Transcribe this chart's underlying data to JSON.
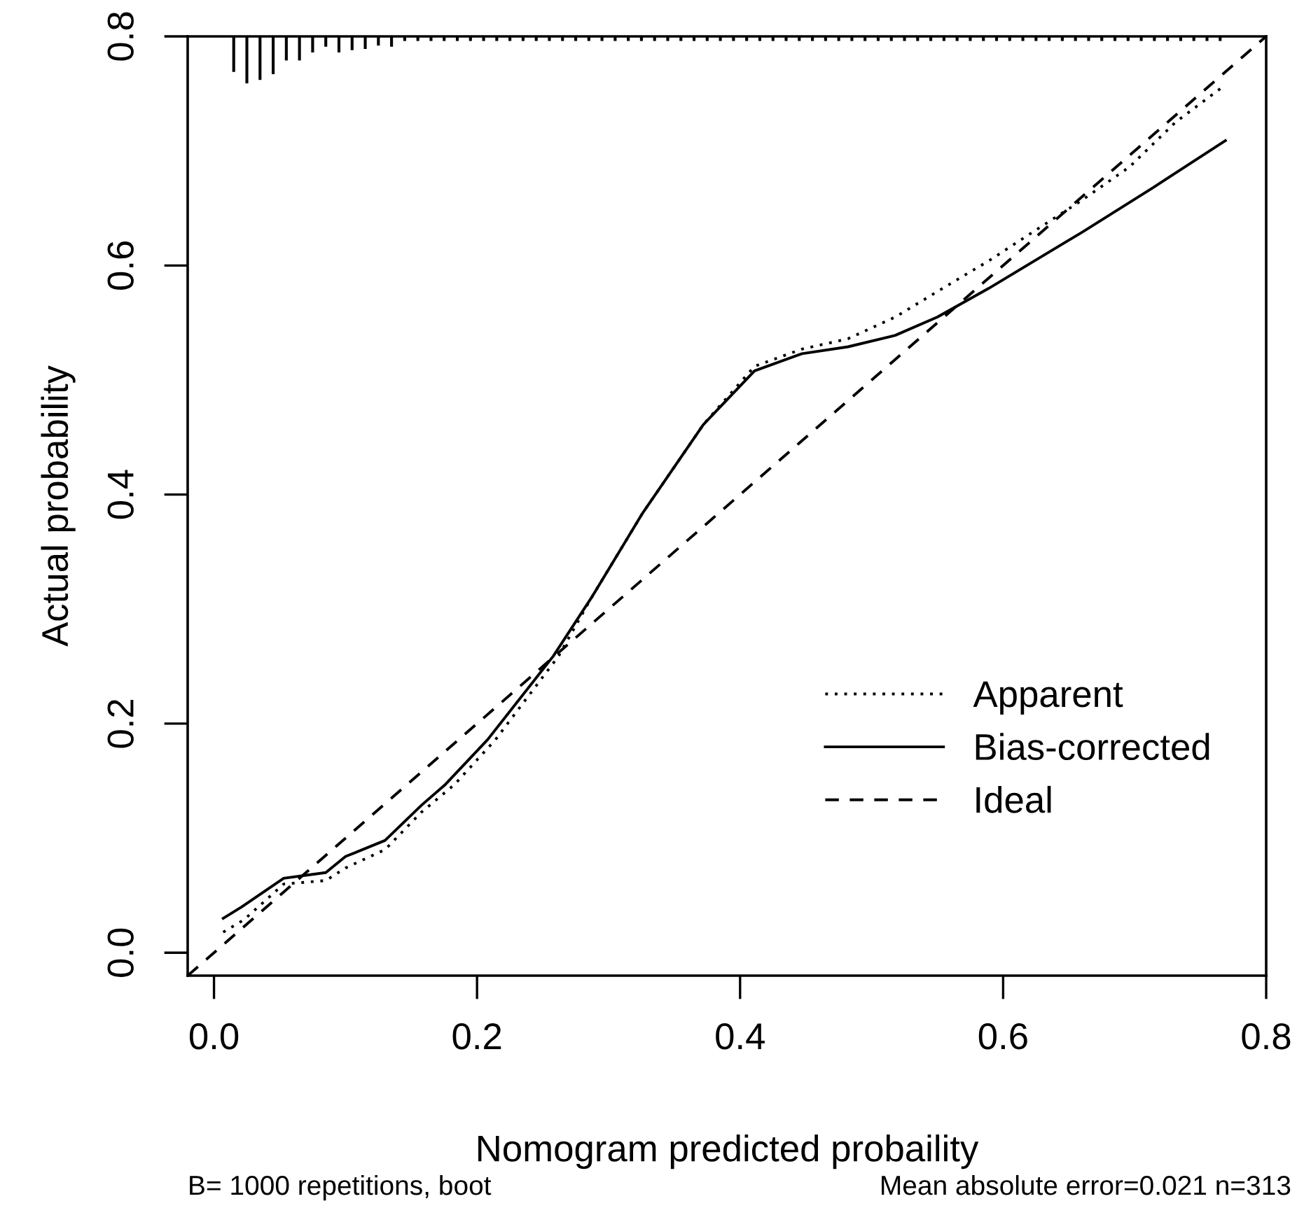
{
  "chart_data": {
    "type": "line",
    "xlabel": "Nomogram predicted probaility",
    "ylabel": "Actual probability",
    "xlim": [
      -0.02,
      0.8
    ],
    "ylim": [
      -0.02,
      0.8
    ],
    "xticks": [
      {
        "value": 0,
        "label": "0.0"
      },
      0.2,
      0.4,
      0.6,
      0.8
    ],
    "yticks": [
      {
        "value": 0,
        "label": "0.0"
      },
      0.2,
      0.4,
      0.6,
      0.8
    ],
    "grid": false,
    "legend": "right",
    "marker": "none",
    "annotations": [
      "B= 1000 repetitions, boot",
      "Mean absolute error=0.021 n=313"
    ],
    "series": [
      {
        "name": "Apparent",
        "color": "#000000",
        "line_style": "dotted",
        "x": [
          0.007,
          0.023,
          0.053,
          0.085,
          0.1,
          0.13,
          0.158,
          0.183,
          0.214,
          0.262,
          0.287,
          0.326,
          0.372,
          0.411,
          0.447,
          0.482,
          0.518,
          0.554,
          0.589,
          0.625,
          0.66,
          0.696,
          0.731,
          0.767
        ],
        "values": [
          0.018,
          0.029,
          0.06,
          0.063,
          0.074,
          0.09,
          0.123,
          0.147,
          0.186,
          0.259,
          0.31,
          0.384,
          0.461,
          0.512,
          0.527,
          0.536,
          0.555,
          0.58,
          0.604,
          0.631,
          0.657,
          0.686,
          0.725,
          0.756
        ]
      },
      {
        "name": "Bias-corrected",
        "color": "#000000",
        "line_style": "solid",
        "x": [
          0.007,
          0.021,
          0.053,
          0.085,
          0.1,
          0.13,
          0.158,
          0.176,
          0.208,
          0.258,
          0.287,
          0.326,
          0.372,
          0.411,
          0.447,
          0.482,
          0.518,
          0.55,
          0.589,
          0.66,
          0.714,
          0.769
        ],
        "values": [
          0.03,
          0.04,
          0.065,
          0.07,
          0.084,
          0.098,
          0.129,
          0.147,
          0.186,
          0.259,
          0.31,
          0.384,
          0.461,
          0.508,
          0.523,
          0.529,
          0.539,
          0.555,
          0.58,
          0.629,
          0.668,
          0.709
        ]
      },
      {
        "name": "Ideal",
        "color": "#000000",
        "line_style": "dashed",
        "x": [
          -0.02,
          0.8
        ],
        "values": [
          -0.02,
          0.8
        ]
      },
      {
        "type": "bar",
        "color": "#000000",
        "x": [
          0.015,
          0.025,
          0.035,
          0.045,
          0.055,
          0.065,
          0.075,
          0.085,
          0.095,
          0.105,
          0.115,
          0.125,
          0.135,
          0.145,
          0.155,
          0.165,
          0.175,
          0.185,
          0.195,
          0.205,
          0.215,
          0.225,
          0.235,
          0.245,
          0.255,
          0.265,
          0.275,
          0.285,
          0.295,
          0.305,
          0.315,
          0.325,
          0.335,
          0.345,
          0.355,
          0.365,
          0.375,
          0.385,
          0.395,
          0.405,
          0.415,
          0.425,
          0.435,
          0.445,
          0.455,
          0.465,
          0.475,
          0.485,
          0.495,
          0.505,
          0.515,
          0.525,
          0.535,
          0.545,
          0.555,
          0.565,
          0.575,
          0.585,
          0.595,
          0.605,
          0.615,
          0.625,
          0.635,
          0.645,
          0.655,
          0.665,
          0.675,
          0.685,
          0.695,
          0.705,
          0.715,
          0.725,
          0.735,
          0.745,
          0.755,
          0.765
        ],
        "base": [
          0.8,
          0.8,
          0.8,
          0.8,
          0.8,
          0.8,
          0.8,
          0.8,
          0.8,
          0.8,
          0.8,
          0.8,
          0.8,
          0.8,
          0.8,
          0.8,
          0.8,
          0.8,
          0.8,
          0.8,
          0.8,
          0.8,
          0.8,
          0.8,
          0.8,
          0.8,
          0.8,
          0.8,
          0.8,
          0.8,
          0.8,
          0.8,
          0.8,
          0.8,
          0.8,
          0.8,
          0.8,
          0.8,
          0.8,
          0.8,
          0.8,
          0.8,
          0.8,
          0.8,
          0.8,
          0.8,
          0.8,
          0.8,
          0.8,
          0.8,
          0.8,
          0.8,
          0.8,
          0.8,
          0.8,
          0.8,
          0.8,
          0.8,
          0.8,
          0.8,
          0.8,
          0.8,
          0.8,
          0.8,
          0.8,
          0.8,
          0.8,
          0.8,
          0.8,
          0.8,
          0.8,
          0.8,
          0.8,
          0.8,
          0.8,
          0.8
        ],
        "values": [
          -0.031,
          -0.041,
          -0.038,
          -0.033,
          -0.021,
          -0.021,
          -0.014,
          -0.009,
          -0.014,
          -0.012,
          -0.011,
          -0.008,
          -0.009,
          -0.004,
          -0.004,
          -0.004,
          -0.004,
          -0.004,
          -0.004,
          -0.004,
          -0.004,
          -0.004,
          -0.004,
          -0.004,
          -0.004,
          -0.004,
          -0.004,
          -0.004,
          -0.004,
          -0.004,
          -0.004,
          -0.004,
          -0.004,
          -0.004,
          -0.004,
          -0.004,
          -0.004,
          -0.004,
          -0.004,
          -0.004,
          -0.004,
          -0.004,
          -0.004,
          -0.004,
          -0.004,
          -0.004,
          -0.004,
          -0.004,
          -0.004,
          -0.004,
          -0.004,
          -0.004,
          -0.004,
          -0.004,
          -0.004,
          -0.004,
          -0.004,
          -0.004,
          -0.004,
          -0.004,
          -0.004,
          -0.004,
          -0.004,
          -0.004,
          -0.004,
          -0.004,
          -0.004,
          -0.004,
          -0.004,
          -0.004,
          -0.004,
          -0.004,
          -0.004,
          -0.004,
          -0.004,
          -0.004
        ]
      }
    ]
  }
}
